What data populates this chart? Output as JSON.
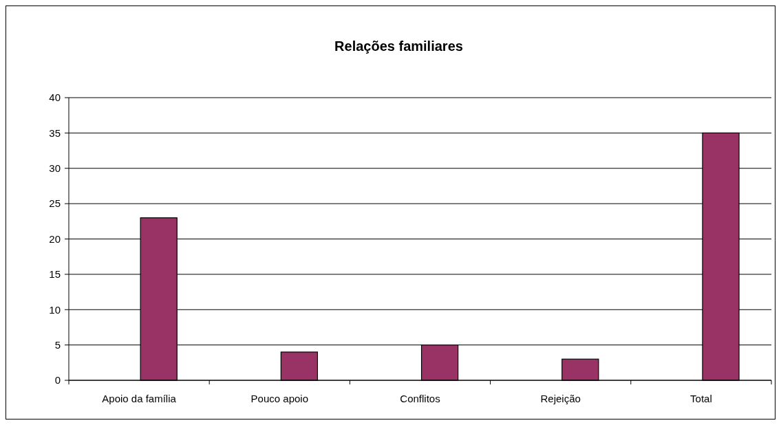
{
  "chart_data": {
    "type": "bar",
    "title": "Relações familiares",
    "categories": [
      "Apoio da família",
      "Pouco apoio",
      "Conflitos",
      "Rejeição",
      "Total"
    ],
    "values": [
      23,
      4,
      5,
      3,
      35
    ],
    "color": "#993366",
    "ylim": [
      0,
      40
    ],
    "yticks": [
      0,
      5,
      10,
      15,
      20,
      25,
      30,
      35,
      40
    ],
    "grid": "y"
  }
}
